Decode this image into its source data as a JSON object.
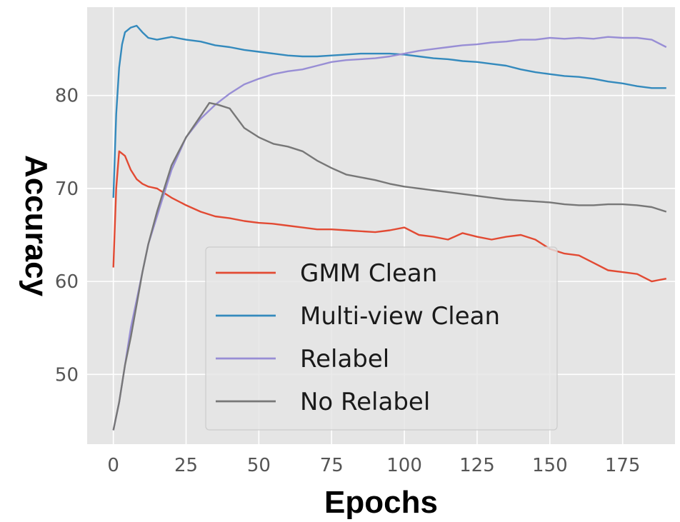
{
  "chart_data": {
    "type": "line",
    "xlabel": "Epochs",
    "ylabel": "Accuracy",
    "xlim": [
      -9,
      193
    ],
    "ylim": [
      42.5,
      89.5
    ],
    "xticks": [
      0,
      25,
      50,
      75,
      100,
      125,
      150,
      175
    ],
    "yticks": [
      50,
      60,
      70,
      80
    ],
    "grid": true,
    "legend_position": "lower-center",
    "series": [
      {
        "name": "GMM Clean",
        "color": "#E24A33",
        "points": [
          [
            0,
            61.5
          ],
          [
            1,
            70
          ],
          [
            2,
            74
          ],
          [
            4,
            73.5
          ],
          [
            6,
            72
          ],
          [
            8,
            71
          ],
          [
            10,
            70.5
          ],
          [
            12,
            70.2
          ],
          [
            15,
            70
          ],
          [
            20,
            69
          ],
          [
            25,
            68.2
          ],
          [
            30,
            67.5
          ],
          [
            35,
            67
          ],
          [
            40,
            66.8
          ],
          [
            45,
            66.5
          ],
          [
            50,
            66.3
          ],
          [
            55,
            66.2
          ],
          [
            60,
            66
          ],
          [
            65,
            65.8
          ],
          [
            70,
            65.6
          ],
          [
            75,
            65.6
          ],
          [
            80,
            65.5
          ],
          [
            85,
            65.4
          ],
          [
            90,
            65.3
          ],
          [
            95,
            65.5
          ],
          [
            100,
            65.8
          ],
          [
            105,
            65
          ],
          [
            110,
            64.8
          ],
          [
            115,
            64.5
          ],
          [
            120,
            65.2
          ],
          [
            125,
            64.8
          ],
          [
            130,
            64.5
          ],
          [
            135,
            64.8
          ],
          [
            140,
            65
          ],
          [
            145,
            64.5
          ],
          [
            150,
            63.5
          ],
          [
            155,
            63
          ],
          [
            160,
            62.8
          ],
          [
            165,
            62
          ],
          [
            170,
            61.2
          ],
          [
            175,
            61
          ],
          [
            180,
            60.8
          ],
          [
            185,
            60
          ],
          [
            190,
            60.3
          ]
        ]
      },
      {
        "name": "Multi-view Clean",
        "color": "#348ABD",
        "points": [
          [
            0,
            69
          ],
          [
            1,
            78
          ],
          [
            2,
            83
          ],
          [
            3,
            85.5
          ],
          [
            4,
            86.8
          ],
          [
            6,
            87.3
          ],
          [
            8,
            87.5
          ],
          [
            10,
            86.8
          ],
          [
            12,
            86.2
          ],
          [
            15,
            86
          ],
          [
            20,
            86.3
          ],
          [
            25,
            86
          ],
          [
            30,
            85.8
          ],
          [
            35,
            85.4
          ],
          [
            40,
            85.2
          ],
          [
            45,
            84.9
          ],
          [
            50,
            84.7
          ],
          [
            55,
            84.5
          ],
          [
            60,
            84.3
          ],
          [
            65,
            84.2
          ],
          [
            70,
            84.2
          ],
          [
            75,
            84.3
          ],
          [
            80,
            84.4
          ],
          [
            85,
            84.5
          ],
          [
            90,
            84.5
          ],
          [
            95,
            84.5
          ],
          [
            100,
            84.4
          ],
          [
            105,
            84.2
          ],
          [
            110,
            84
          ],
          [
            115,
            83.9
          ],
          [
            120,
            83.7
          ],
          [
            125,
            83.6
          ],
          [
            130,
            83.4
          ],
          [
            135,
            83.2
          ],
          [
            140,
            82.8
          ],
          [
            145,
            82.5
          ],
          [
            150,
            82.3
          ],
          [
            155,
            82.1
          ],
          [
            160,
            82
          ],
          [
            165,
            81.8
          ],
          [
            170,
            81.5
          ],
          [
            175,
            81.3
          ],
          [
            180,
            81
          ],
          [
            185,
            80.8
          ],
          [
            190,
            80.8
          ]
        ]
      },
      {
        "name": "Relabel",
        "color": "#988ED5",
        "points": [
          [
            0,
            44
          ],
          [
            2,
            47
          ],
          [
            4,
            51
          ],
          [
            6,
            55
          ],
          [
            8,
            58
          ],
          [
            10,
            61
          ],
          [
            12,
            64
          ],
          [
            15,
            67
          ],
          [
            18,
            70
          ],
          [
            20,
            72
          ],
          [
            25,
            75.5
          ],
          [
            30,
            77.5
          ],
          [
            35,
            79
          ],
          [
            40,
            80.2
          ],
          [
            45,
            81.2
          ],
          [
            50,
            81.8
          ],
          [
            55,
            82.3
          ],
          [
            60,
            82.6
          ],
          [
            65,
            82.8
          ],
          [
            70,
            83.2
          ],
          [
            75,
            83.6
          ],
          [
            80,
            83.8
          ],
          [
            85,
            83.9
          ],
          [
            90,
            84
          ],
          [
            95,
            84.2
          ],
          [
            100,
            84.5
          ],
          [
            105,
            84.8
          ],
          [
            110,
            85
          ],
          [
            115,
            85.2
          ],
          [
            120,
            85.4
          ],
          [
            125,
            85.5
          ],
          [
            130,
            85.7
          ],
          [
            135,
            85.8
          ],
          [
            140,
            86
          ],
          [
            145,
            86
          ],
          [
            150,
            86.2
          ],
          [
            155,
            86.1
          ],
          [
            160,
            86.2
          ],
          [
            165,
            86.1
          ],
          [
            170,
            86.3
          ],
          [
            175,
            86.2
          ],
          [
            180,
            86.2
          ],
          [
            185,
            86
          ],
          [
            190,
            85.2
          ]
        ]
      },
      {
        "name": "No Relabel",
        "color": "#777777",
        "points": [
          [
            0,
            44
          ],
          [
            2,
            47
          ],
          [
            4,
            51
          ],
          [
            6,
            54
          ],
          [
            8,
            57.5
          ],
          [
            10,
            61
          ],
          [
            12,
            64
          ],
          [
            15,
            67.5
          ],
          [
            18,
            70.5
          ],
          [
            20,
            72.5
          ],
          [
            25,
            75.5
          ],
          [
            30,
            77.8
          ],
          [
            33,
            79.2
          ],
          [
            36,
            79
          ],
          [
            40,
            78.6
          ],
          [
            45,
            76.5
          ],
          [
            50,
            75.5
          ],
          [
            55,
            74.8
          ],
          [
            60,
            74.5
          ],
          [
            65,
            74
          ],
          [
            70,
            73
          ],
          [
            75,
            72.2
          ],
          [
            80,
            71.5
          ],
          [
            85,
            71.2
          ],
          [
            90,
            70.9
          ],
          [
            95,
            70.5
          ],
          [
            100,
            70.2
          ],
          [
            105,
            70
          ],
          [
            110,
            69.8
          ],
          [
            115,
            69.6
          ],
          [
            120,
            69.4
          ],
          [
            125,
            69.2
          ],
          [
            130,
            69
          ],
          [
            135,
            68.8
          ],
          [
            140,
            68.7
          ],
          [
            145,
            68.6
          ],
          [
            150,
            68.5
          ],
          [
            155,
            68.3
          ],
          [
            160,
            68.2
          ],
          [
            165,
            68.2
          ],
          [
            170,
            68.3
          ],
          [
            175,
            68.3
          ],
          [
            180,
            68.2
          ],
          [
            185,
            68
          ],
          [
            190,
            67.5
          ]
        ]
      }
    ]
  }
}
